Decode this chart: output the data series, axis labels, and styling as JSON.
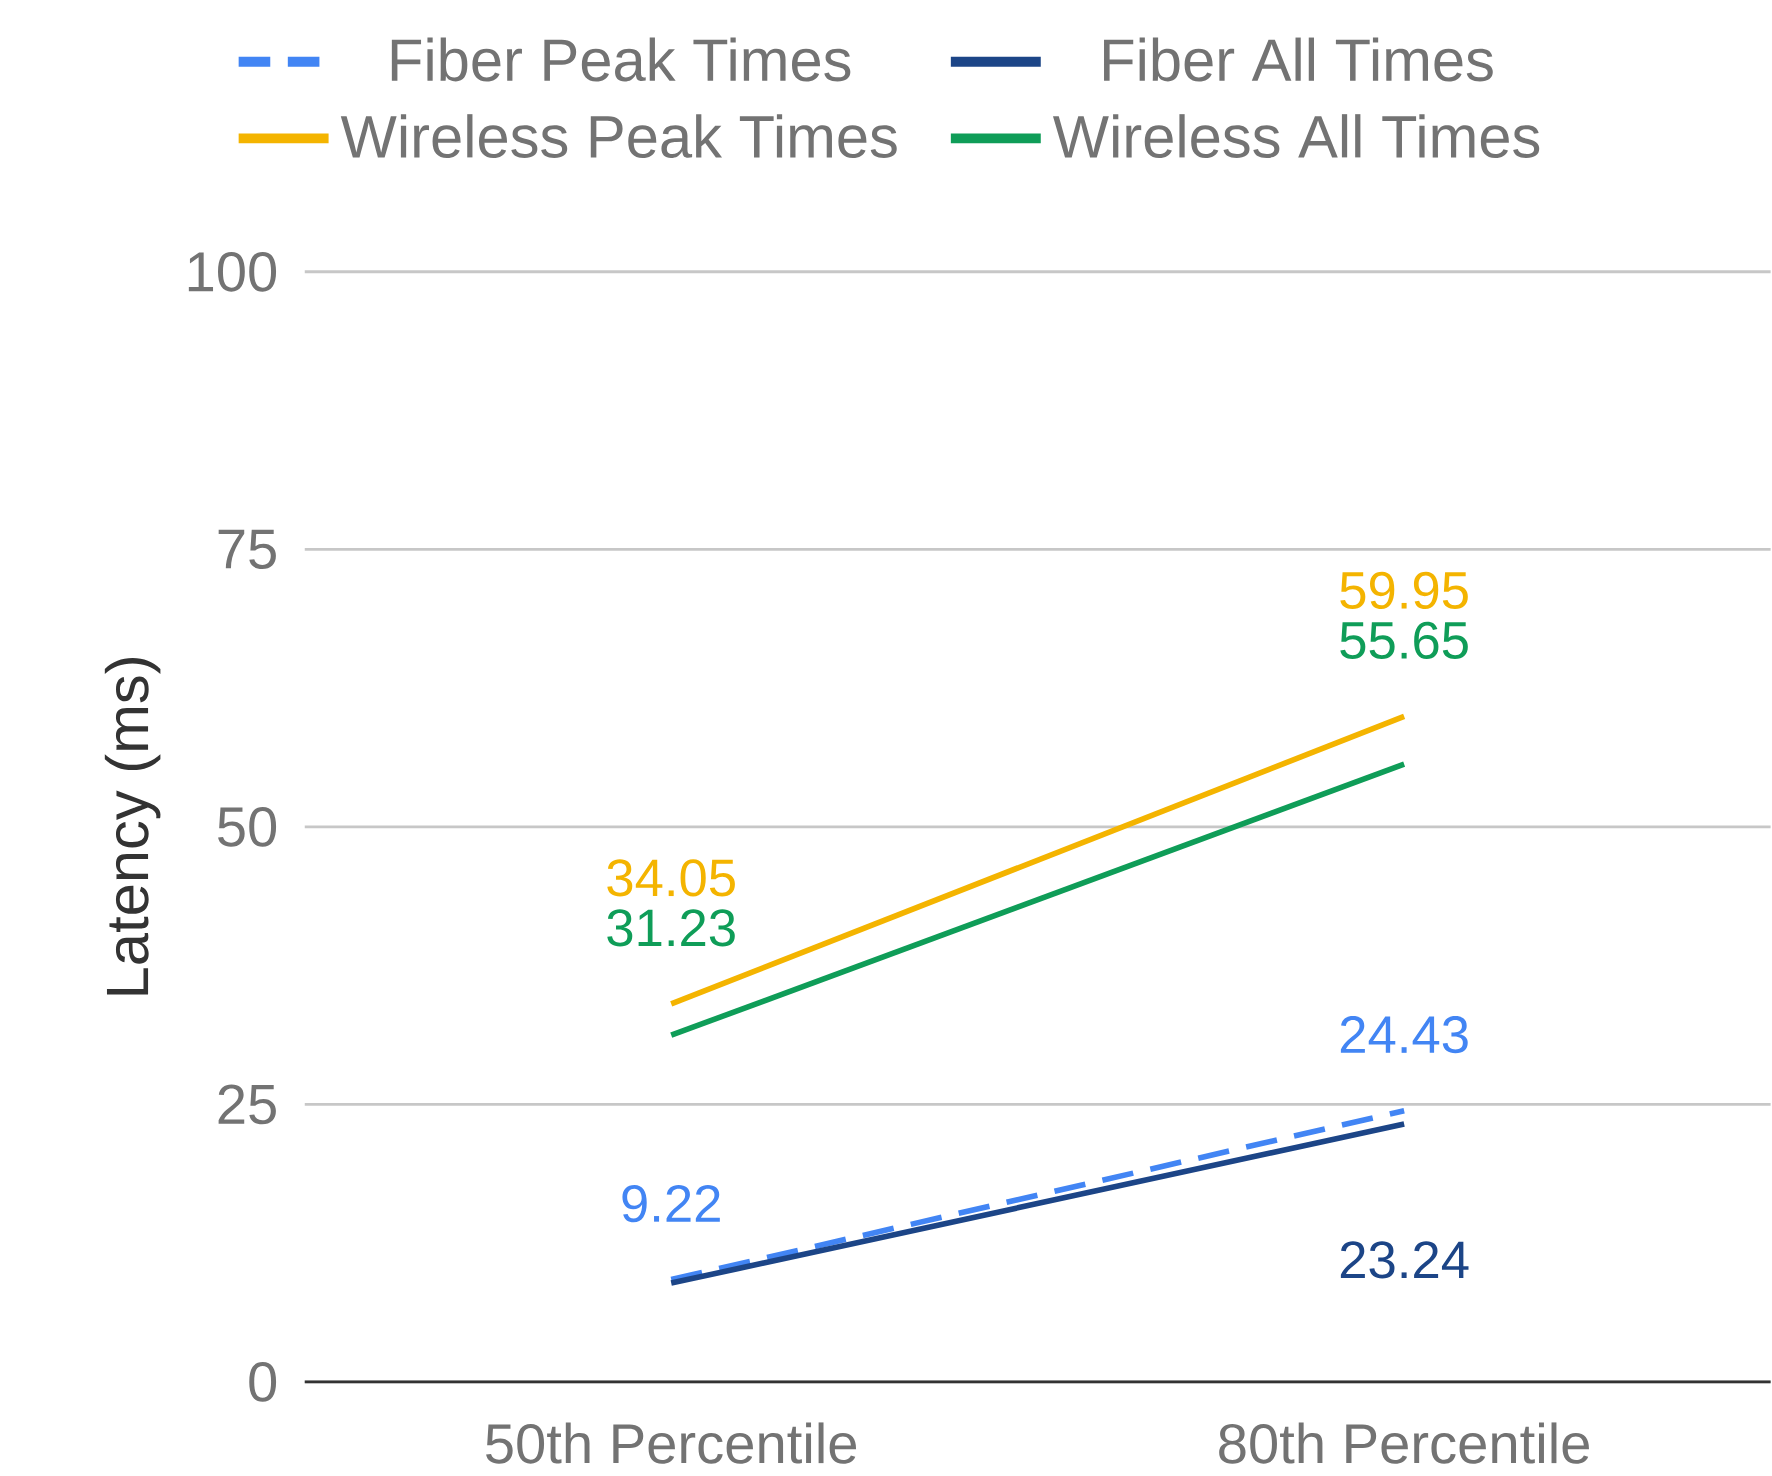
{
  "chart_data": {
    "type": "line",
    "ylabel": "Latency (ms)",
    "categories": [
      "50th Percentile",
      "80th Percentile"
    ],
    "series": [
      {
        "name": "Fiber Peak Times",
        "color": "#4285f4",
        "line_style": "dashed",
        "values": [
          9.22,
          24.43
        ],
        "value_labels": [
          "9.22",
          "24.43"
        ]
      },
      {
        "name": "Fiber All Times",
        "color": "#1c4587",
        "values": [
          8.9,
          23.24
        ],
        "value_labels": [
          null,
          "23.24"
        ]
      },
      {
        "name": "Wireless Peak Times",
        "color": "#f4b400",
        "values": [
          34.05,
          59.95
        ],
        "value_labels": [
          "34.05",
          "59.95"
        ]
      },
      {
        "name": "Wireless All Times",
        "color": "#0f9d58",
        "values": [
          31.23,
          55.65
        ],
        "value_labels": [
          "31.23",
          "55.65"
        ]
      }
    ],
    "ylim": [
      0,
      100
    ],
    "yticks": [
      0,
      25,
      50,
      75,
      100
    ],
    "grid": "y",
    "legend": "top",
    "line_style": "solid",
    "marker": "none"
  }
}
